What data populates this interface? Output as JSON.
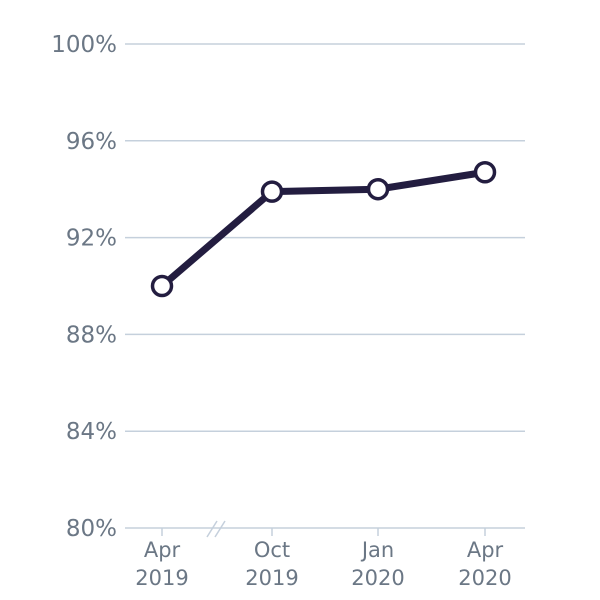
{
  "chart_data": {
    "type": "line",
    "title": "",
    "xlabel": "",
    "ylabel": "",
    "categories": [
      [
        "Apr",
        "2019"
      ],
      [
        "Oct",
        "2019"
      ],
      [
        "Jan",
        "2020"
      ],
      [
        "Apr",
        "2020"
      ]
    ],
    "x": [
      "2019-04",
      "2019-10",
      "2020-01",
      "2020-04"
    ],
    "values": [
      90.0,
      93.9,
      94.0,
      94.7
    ],
    "y_unit": "%",
    "ylim": [
      80,
      100
    ],
    "y_ticks": [
      80,
      84,
      88,
      92,
      96,
      100
    ],
    "y_tick_labels": [
      "80%",
      "84%",
      "88%",
      "92%",
      "96%",
      "100%"
    ],
    "grid": "horizontal",
    "x_axis_break": "between Apr 2019 and Oct 2019",
    "series_color": "#231d40",
    "grid_color": "#c5d0dc",
    "label_color": "#6b7785",
    "legend": "none"
  }
}
